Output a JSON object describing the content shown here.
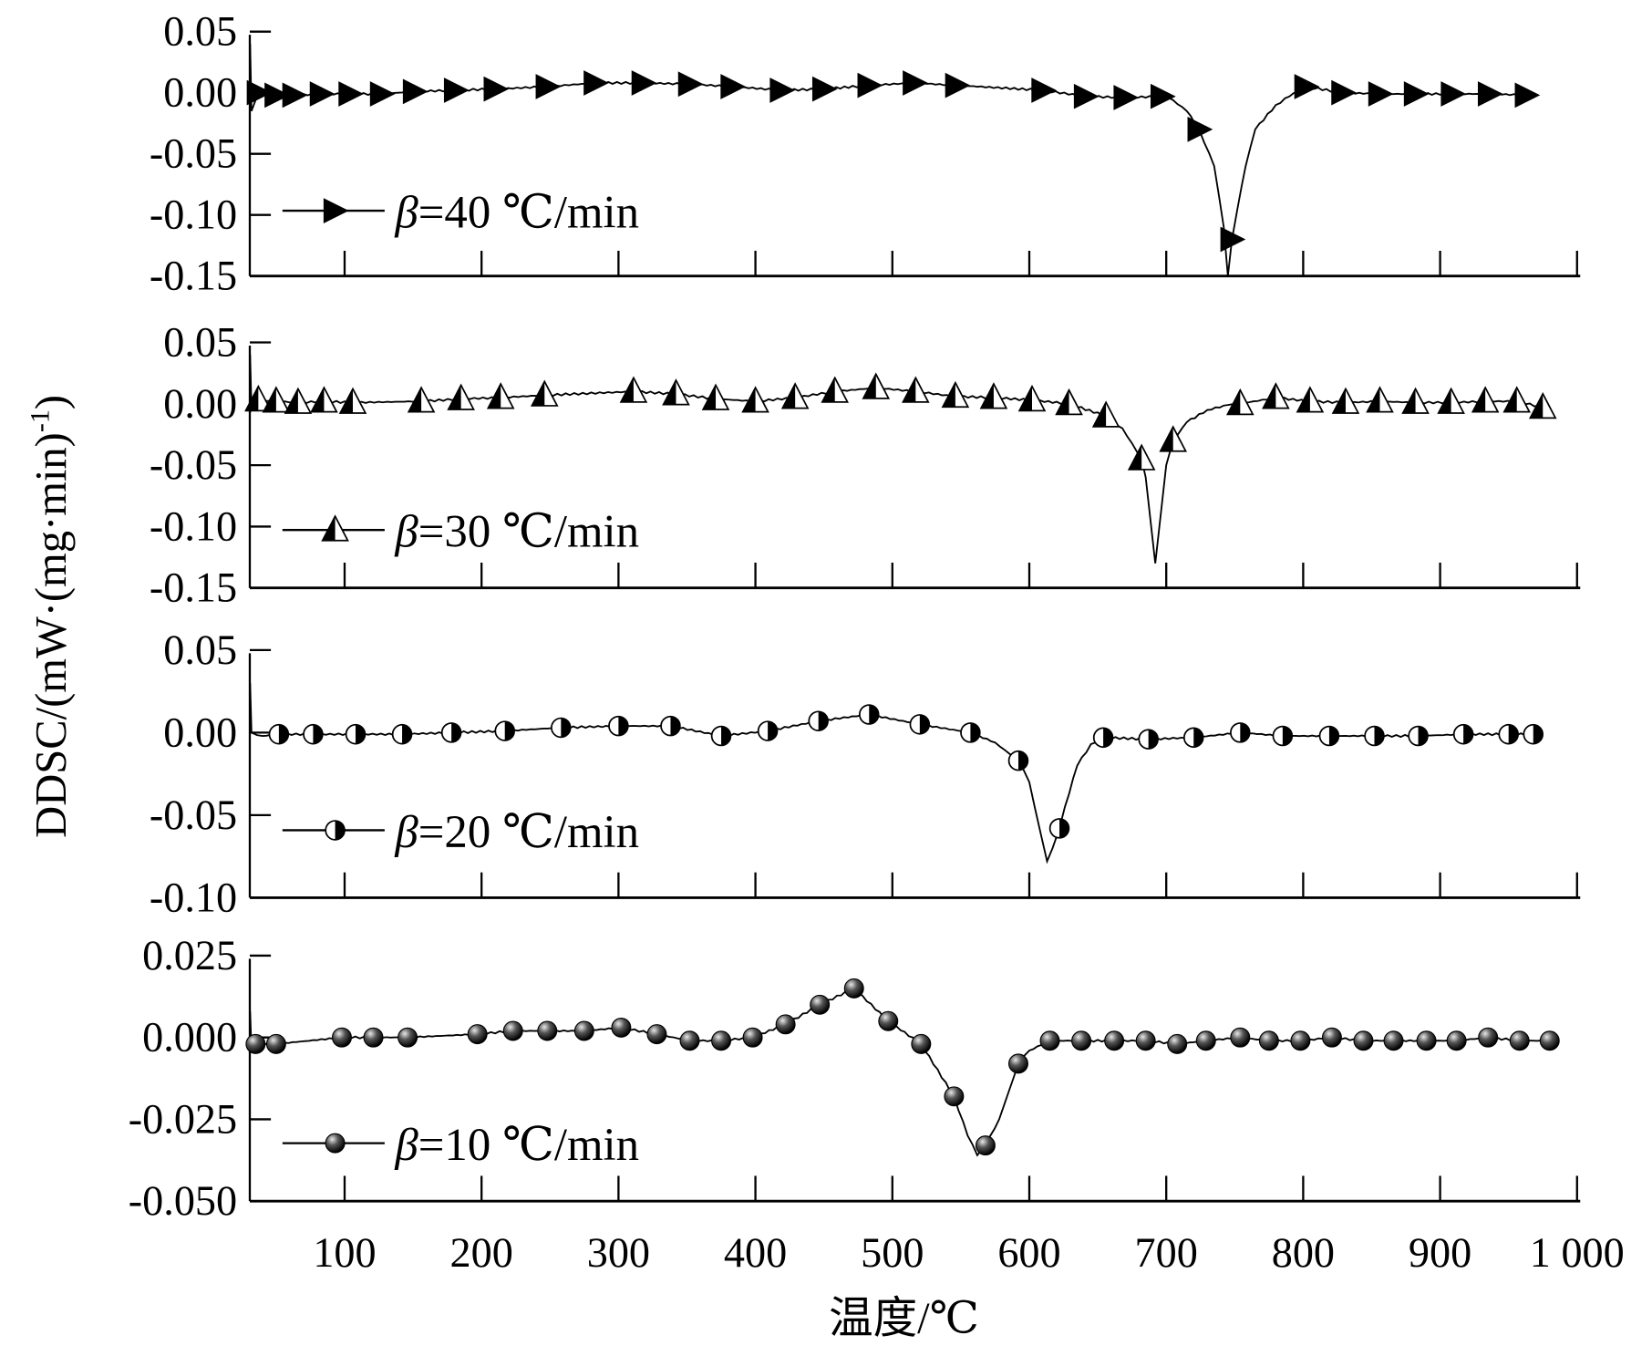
{
  "chart_data": {
    "type": "line",
    "xlabel": "温度/℃",
    "ylabel": "DDSC/(mW·(mg·min)",
    "ylabel_sup": "-1",
    "ylabel_close": ")",
    "xlim": [
      30,
      1000
    ],
    "xticks": [
      100,
      200,
      300,
      400,
      500,
      600,
      700,
      800,
      900,
      1000
    ],
    "xtick_labels": [
      "100",
      "200",
      "300",
      "400",
      "500",
      "600",
      "700",
      "800",
      "900",
      "1 000"
    ],
    "colors": {
      "line": "#000000",
      "marker_fill": "#000000",
      "open_fill": "#ffffff"
    },
    "panels": [
      {
        "ylim": [
          -0.15,
          0.05
        ],
        "yticks": [
          0.05,
          0.0,
          -0.05,
          -0.1,
          -0.15
        ],
        "ytick_labels": [
          "0.05",
          "0.00",
          "-0.05",
          "-0.10",
          "-0.15"
        ],
        "series": {
          "name": "β=40 ℃/min",
          "beta": "β",
          "label": "=40 ℃/min",
          "marker": "filled-right-triangle",
          "markers": [
            [
              37,
              0
            ],
            [
              50,
              -0.002
            ],
            [
              63,
              -0.002
            ],
            [
              83,
              -0.001
            ],
            [
              104,
              -0.001
            ],
            [
              127,
              -0.001
            ],
            [
              151,
              0.001
            ],
            [
              181,
              0.002
            ],
            [
              210,
              0.003
            ],
            [
              248,
              0.005
            ],
            [
              283,
              0.008
            ],
            [
              318,
              0.008
            ],
            [
              352,
              0.007
            ],
            [
              383,
              0.005
            ],
            [
              419,
              0.002
            ],
            [
              450,
              0.003
            ],
            [
              483,
              0.006
            ],
            [
              516,
              0.008
            ],
            [
              547,
              0.006
            ],
            [
              610,
              0.002
            ],
            [
              641,
              -0.003
            ],
            [
              670,
              -0.004
            ],
            [
              697,
              -0.003
            ],
            [
              724,
              -0.03
            ],
            [
              748,
              -0.12
            ],
            [
              802,
              0.005
            ],
            [
              829,
              0
            ],
            [
              856,
              -0.001
            ],
            [
              882,
              -0.001
            ],
            [
              909,
              -0.001
            ],
            [
              936,
              -0.001
            ],
            [
              963,
              -0.002
            ]
          ],
          "curve": [
            [
              31,
              0.04
            ],
            [
              32,
              -0.015
            ],
            [
              705,
              -0.006
            ],
            [
              715,
              -0.015
            ],
            [
              735,
              -0.06
            ],
            [
              742,
              -0.11
            ],
            [
              745,
              -0.15
            ],
            [
              752,
              -0.095
            ],
            [
              758,
              -0.06
            ],
            [
              765,
              -0.03
            ],
            [
              780,
              -0.01
            ],
            [
              790,
              -0.003
            ]
          ]
        }
      },
      {
        "ylim": [
          -0.15,
          0.05
        ],
        "yticks": [
          0.05,
          0.0,
          -0.05,
          -0.1,
          -0.15
        ],
        "ytick_labels": [
          "0.05",
          "0.00",
          "-0.05",
          "-0.10",
          "-0.15"
        ],
        "series": {
          "name": "β=30 ℃/min",
          "beta": "β",
          "label": "=30 ℃/min",
          "marker": "half-filled-up-triangle",
          "markers": [
            [
              37,
              0.003
            ],
            [
              50,
              0.002
            ],
            [
              66,
              0.001
            ],
            [
              85,
              0.002
            ],
            [
              106,
              0.001
            ],
            [
              156,
              0.002
            ],
            [
              185,
              0.004
            ],
            [
              214,
              0.005
            ],
            [
              246,
              0.007
            ],
            [
              311,
              0.01
            ],
            [
              342,
              0.008
            ],
            [
              371,
              0.004
            ],
            [
              400,
              0.002
            ],
            [
              429,
              0.005
            ],
            [
              458,
              0.01
            ],
            [
              488,
              0.013
            ],
            [
              517,
              0.01
            ],
            [
              546,
              0.006
            ],
            [
              574,
              0.005
            ],
            [
              602,
              0.003
            ],
            [
              629,
              0
            ],
            [
              656,
              -0.01
            ],
            [
              682,
              -0.045
            ],
            [
              705,
              -0.03
            ],
            [
              754,
              0
            ],
            [
              780,
              0.005
            ],
            [
              805,
              0.002
            ],
            [
              831,
              0.001
            ],
            [
              856,
              0.002
            ],
            [
              882,
              0.001
            ],
            [
              908,
              0.001
            ],
            [
              933,
              0.002
            ],
            [
              956,
              0.002
            ],
            [
              975,
              -0.003
            ]
          ],
          "curve": [
            [
              31,
              0.04
            ],
            [
              32,
              -0.005
            ],
            [
              668,
              -0.02
            ],
            [
              685,
              -0.06
            ],
            [
              690,
              -0.11
            ],
            [
              692,
              -0.13
            ],
            [
              696,
              -0.09
            ],
            [
              700,
              -0.05
            ],
            [
              715,
              -0.015
            ],
            [
              730,
              -0.005
            ],
            [
              745,
              -0.001
            ]
          ]
        }
      },
      {
        "ylim": [
          -0.1,
          0.05
        ],
        "yticks": [
          0.05,
          0.0,
          -0.05,
          -0.1
        ],
        "ytick_labels": [
          "0.05",
          "0.00",
          "-0.05",
          "-0.10"
        ],
        "series": {
          "name": "β=20 ℃/min",
          "beta": "β",
          "label": "=20 ℃/min",
          "marker": "half-filled-circle",
          "markers": [
            [
              52,
              -0.001
            ],
            [
              77,
              -0.001
            ],
            [
              108,
              -0.001
            ],
            [
              142,
              -0.001
            ],
            [
              178,
              0
            ],
            [
              217,
              0.001
            ],
            [
              258,
              0.003
            ],
            [
              300,
              0.004
            ],
            [
              338,
              0.004
            ],
            [
              375,
              -0.002
            ],
            [
              409,
              0.001
            ],
            [
              446,
              0.007
            ],
            [
              483,
              0.011
            ],
            [
              520,
              0.005
            ],
            [
              557,
              0
            ],
            [
              592,
              -0.017
            ],
            [
              622,
              -0.058
            ],
            [
              654,
              -0.003
            ],
            [
              687,
              -0.004
            ],
            [
              720,
              -0.003
            ],
            [
              754,
              0
            ],
            [
              785,
              -0.002
            ],
            [
              819,
              -0.002
            ],
            [
              852,
              -0.002
            ],
            [
              884,
              -0.002
            ],
            [
              917,
              -0.001
            ],
            [
              950,
              -0.001
            ],
            [
              968,
              -0.001
            ]
          ],
          "curve": [
            [
              31,
              0.03
            ],
            [
              32,
              0
            ],
            [
              40,
              -0.002
            ],
            [
              575,
              -0.006
            ],
            [
              600,
              -0.03
            ],
            [
              608,
              -0.06
            ],
            [
              613,
              -0.078
            ],
            [
              617,
              -0.07
            ],
            [
              626,
              -0.045
            ],
            [
              635,
              -0.02
            ],
            [
              645,
              -0.007
            ]
          ]
        }
      },
      {
        "ylim": [
          -0.05,
          0.025
        ],
        "yticks": [
          0.025,
          0.0,
          -0.025,
          -0.05
        ],
        "ytick_labels": [
          "0.025",
          "0.000",
          "-0.025",
          "-0.050"
        ],
        "series": {
          "name": "β=10 ℃/min",
          "beta": "β",
          "label": "=10 ℃/min",
          "marker": "filled-sphere",
          "markers": [
            [
              35,
              -0.002
            ],
            [
              50,
              -0.002
            ],
            [
              98,
              0
            ],
            [
              121,
              0
            ],
            [
              146,
              0
            ],
            [
              197,
              0.001
            ],
            [
              223,
              0.002
            ],
            [
              248,
              0.002
            ],
            [
              275,
              0.002
            ],
            [
              302,
              0.003
            ],
            [
              328,
              0.001
            ],
            [
              352,
              -0.001
            ],
            [
              375,
              -0.001
            ],
            [
              398,
              0
            ],
            [
              422,
              0.004
            ],
            [
              447,
              0.01
            ],
            [
              472,
              0.015
            ],
            [
              497,
              0.005
            ],
            [
              521,
              -0.002
            ],
            [
              545,
              -0.018
            ],
            [
              568,
              -0.033
            ],
            [
              592,
              -0.008
            ],
            [
              615,
              -0.001
            ],
            [
              638,
              -0.001
            ],
            [
              662,
              -0.001
            ],
            [
              685,
              -0.001
            ],
            [
              708,
              -0.002
            ],
            [
              729,
              -0.001
            ],
            [
              754,
              0
            ],
            [
              775,
              -0.001
            ],
            [
              798,
              -0.001
            ],
            [
              821,
              0
            ],
            [
              844,
              -0.001
            ],
            [
              866,
              -0.001
            ],
            [
              890,
              -0.001
            ],
            [
              912,
              -0.001
            ],
            [
              935,
              0
            ],
            [
              958,
              -0.001
            ],
            [
              980,
              -0.001
            ]
          ],
          "curve": [
            [
              31,
              0.008
            ],
            [
              32,
              -0.004
            ],
            [
              555,
              -0.03
            ],
            [
              562,
              -0.036
            ],
            [
              578,
              -0.025
            ],
            [
              600,
              -0.004
            ]
          ]
        }
      }
    ]
  }
}
